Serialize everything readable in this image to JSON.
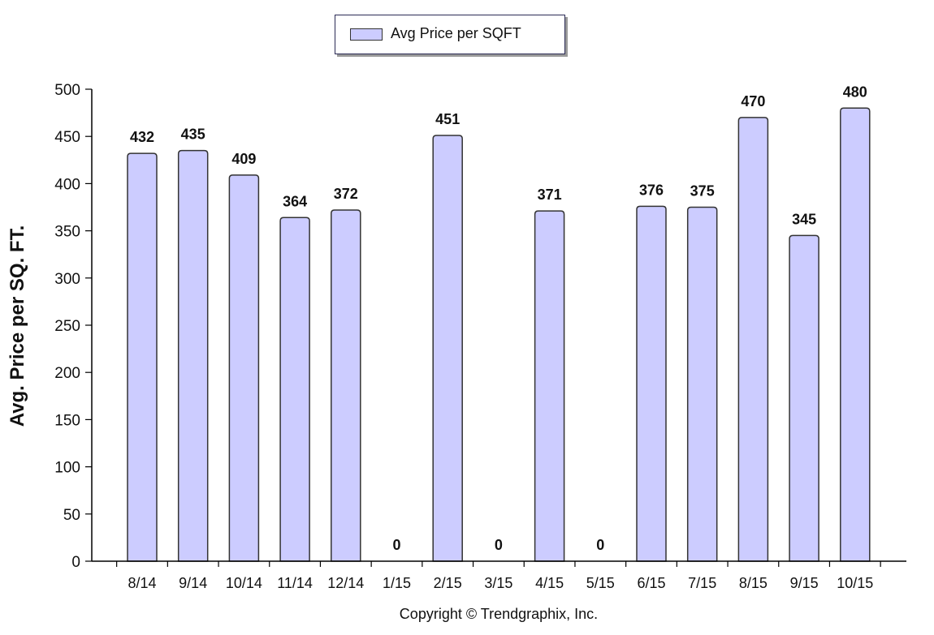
{
  "chart_data": {
    "type": "bar",
    "categories": [
      "8/14",
      "9/14",
      "10/14",
      "11/14",
      "12/14",
      "1/15",
      "2/15",
      "3/15",
      "4/15",
      "5/15",
      "6/15",
      "7/15",
      "8/15",
      "9/15",
      "10/15"
    ],
    "series": [
      {
        "name": "Avg Price per SQFT",
        "values": [
          432,
          435,
          409,
          364,
          372,
          0,
          451,
          0,
          371,
          0,
          376,
          375,
          470,
          345,
          480
        ]
      }
    ],
    "ylabel": "Avg. Price per SQ. FT.",
    "xlabel": "",
    "ylim": [
      0,
      500
    ],
    "yticks": [
      0,
      50,
      100,
      150,
      200,
      250,
      300,
      350,
      400,
      450,
      500
    ],
    "legend_position": "top-center",
    "grid": false,
    "bar_color": "#ccccff",
    "bar_outline": "#333333"
  },
  "legend": {
    "label": "Avg Price per SQFT"
  },
  "copyright": "Copyright © Trendgraphix, Inc."
}
